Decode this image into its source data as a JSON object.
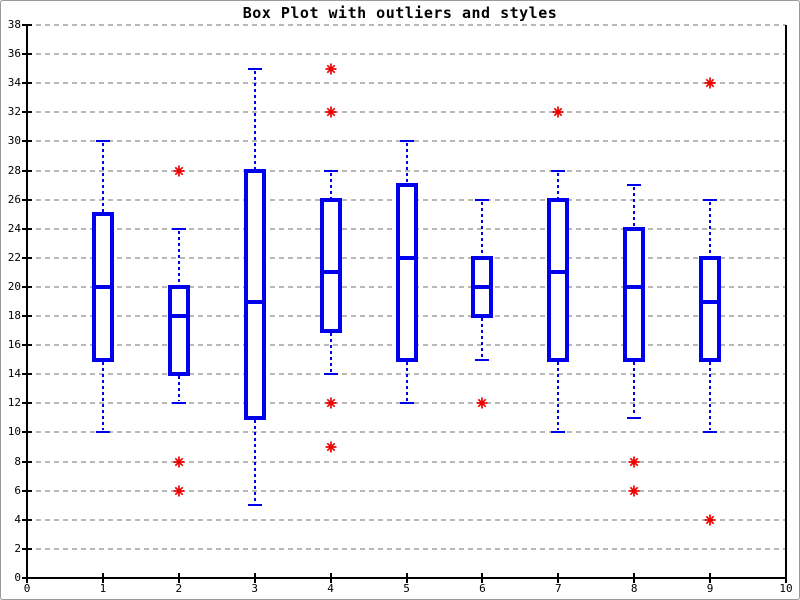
{
  "window": {
    "background": "#ffffff",
    "border_color": "#9a9a9a"
  },
  "chart_data": {
    "type": "boxplot",
    "title": "Box Plot with outliers and styles",
    "xlabel": "",
    "ylabel": "",
    "xlim": [
      0,
      10
    ],
    "ylim": [
      0,
      38
    ],
    "x_ticks": [
      0,
      1,
      2,
      3,
      4,
      5,
      6,
      7,
      8,
      9,
      10
    ],
    "y_ticks": [
      0,
      2,
      4,
      6,
      8,
      10,
      12,
      14,
      16,
      18,
      20,
      22,
      24,
      26,
      28,
      30,
      32,
      34,
      36,
      38
    ],
    "grid": {
      "horizontal": true,
      "vertical": false,
      "style": "dashed",
      "color": "#b8b8b8"
    },
    "legend": "none",
    "style": {
      "box_color": "#0000ee",
      "whisker_color": "#0000ee",
      "median_color": "#0000ee",
      "outlier_color": "#ee0000",
      "outlier_marker": "asterisk",
      "axis_color": "#000000"
    },
    "series": [
      {
        "x": 1,
        "low": 10,
        "q1": 15,
        "median": 20,
        "q3": 25,
        "high": 30,
        "outliers": []
      },
      {
        "x": 2,
        "low": 12,
        "q1": 14,
        "median": 18,
        "q3": 20,
        "high": 24,
        "outliers": [
          28,
          8,
          6
        ]
      },
      {
        "x": 3,
        "low": 5,
        "q1": 11,
        "median": 19,
        "q3": 28,
        "high": 35,
        "outliers": []
      },
      {
        "x": 4,
        "low": 14,
        "q1": 17,
        "median": 21,
        "q3": 26,
        "high": 28,
        "outliers": [
          35,
          32,
          12,
          9
        ]
      },
      {
        "x": 5,
        "low": 12,
        "q1": 15,
        "median": 22,
        "q3": 27,
        "high": 30,
        "outliers": []
      },
      {
        "x": 6,
        "low": 15,
        "q1": 18,
        "median": 20,
        "q3": 22,
        "high": 26,
        "outliers": [
          12
        ]
      },
      {
        "x": 7,
        "low": 10,
        "q1": 15,
        "median": 21,
        "q3": 26,
        "high": 28,
        "outliers": [
          32
        ]
      },
      {
        "x": 8,
        "low": 11,
        "q1": 15,
        "median": 20,
        "q3": 24,
        "high": 27,
        "outliers": [
          8,
          6
        ]
      },
      {
        "x": 9,
        "low": 10,
        "q1": 15,
        "median": 19,
        "q3": 22,
        "high": 26,
        "outliers": [
          34,
          4
        ]
      }
    ]
  }
}
